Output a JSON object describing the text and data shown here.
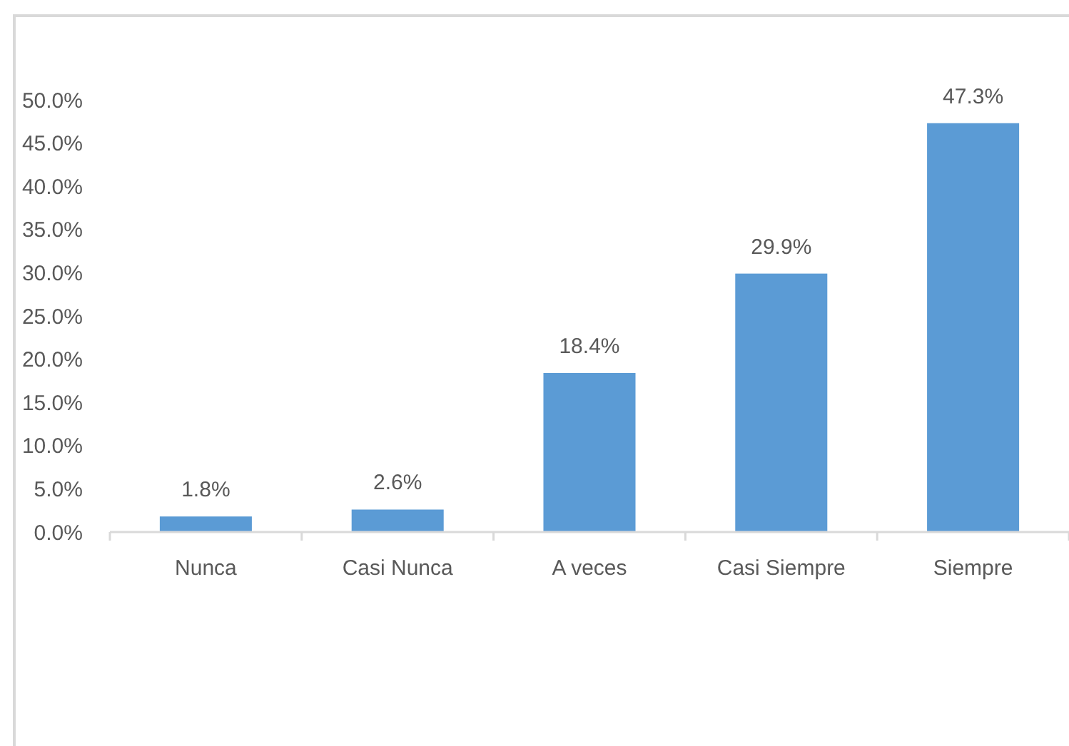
{
  "chart_data": {
    "type": "bar",
    "categories": [
      "Nunca",
      "Casi Nunca",
      "A veces",
      "Casi Siempre",
      "Siempre"
    ],
    "values": [
      1.8,
      2.6,
      18.4,
      29.9,
      47.3
    ],
    "color": "#5b9bd5",
    "value_labels": [
      "1.8%",
      "2.6%",
      "18.4%",
      "29.9%",
      "47.3%"
    ],
    "ylim": [
      0,
      50
    ],
    "yticks": [
      {
        "value": 0,
        "label": "0.0%"
      },
      {
        "value": 5,
        "label": "5.0%"
      },
      {
        "value": 10,
        "label": "10.0%"
      },
      {
        "value": 15,
        "label": "15.0%"
      },
      {
        "value": 20,
        "label": "20.0%"
      },
      {
        "value": 25,
        "label": "25.0%"
      },
      {
        "value": 30,
        "label": "30.0%"
      },
      {
        "value": 35,
        "label": "35.0%"
      },
      {
        "value": 40,
        "label": "40.0%"
      },
      {
        "value": 45,
        "label": "45.0%"
      },
      {
        "value": 50,
        "label": "50.0%"
      }
    ],
    "grid": false
  }
}
